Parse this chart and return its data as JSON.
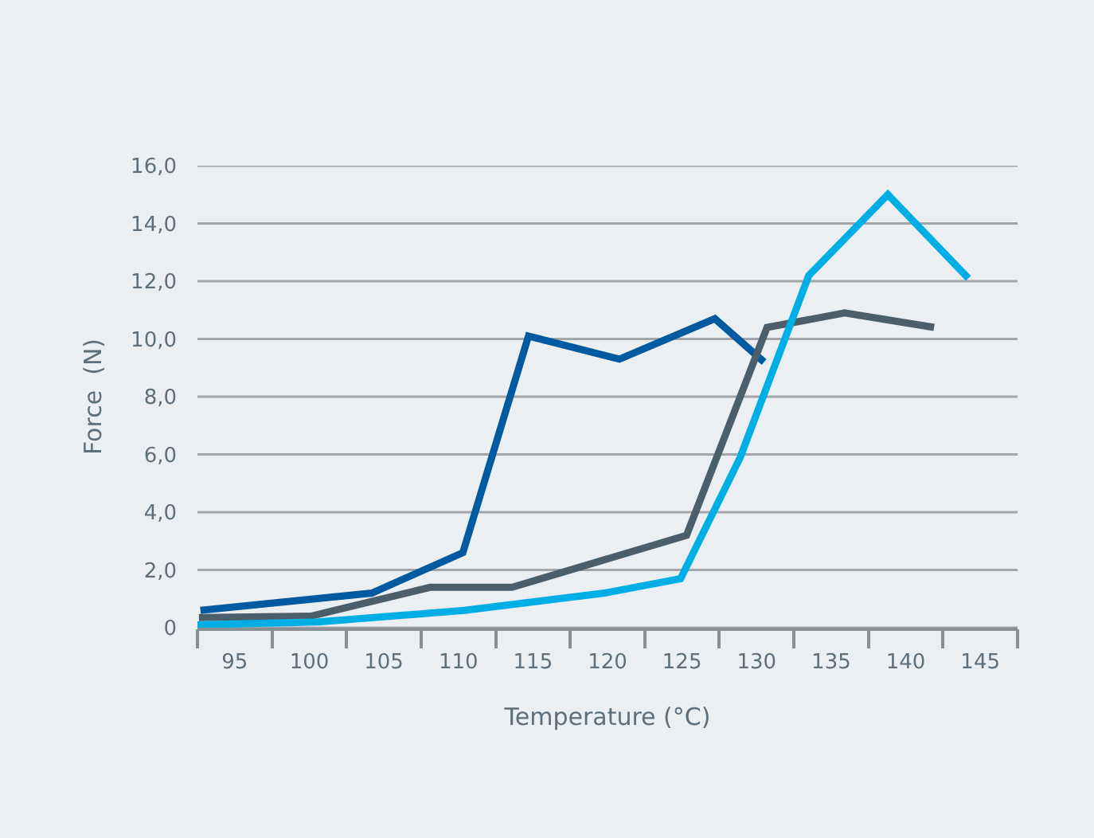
{
  "chart_data": {
    "type": "line",
    "xlabel": "Temperature (°C)",
    "ylabel": "Force  (N)",
    "xlim": [
      92.5,
      147.5
    ],
    "xticks": [
      {
        "value": 92.5,
        "label": null
      },
      95,
      {
        "value": 97.5,
        "label": null
      },
      100,
      {
        "value": 102.5,
        "label": null
      },
      105,
      {
        "value": 107.5,
        "label": null
      },
      110,
      {
        "value": 112.5,
        "label": null
      },
      115,
      {
        "value": 117.5,
        "label": null
      },
      120,
      {
        "value": 122.5,
        "label": null
      },
      125,
      {
        "value": 127.5,
        "label": null
      },
      130,
      {
        "value": 132.5,
        "label": null
      },
      135,
      {
        "value": 137.5,
        "label": null
      },
      140,
      {
        "value": 142.5,
        "label": null
      },
      145,
      {
        "value": 147.5,
        "label": null
      }
    ],
    "ylim": [
      0,
      16
    ],
    "yticks": [
      0,
      {
        "value": 2,
        "label": "2,0"
      },
      {
        "value": 4,
        "label": "4,0"
      },
      {
        "value": 6,
        "label": "6,0"
      },
      {
        "value": 8,
        "label": "8,0"
      },
      {
        "value": 10,
        "label": "10,0"
      },
      {
        "value": 12,
        "label": "12,0"
      },
      {
        "value": 14,
        "label": "14,0"
      },
      {
        "value": 16,
        "label": "16,0"
      }
    ],
    "grid": "y",
    "legend": false,
    "marker": "none",
    "line_style": "solid",
    "series": [
      {
        "color": "#005aa0",
        "x": [
          92.7,
          104.2,
          110.3,
          114.7,
          120.8,
          127.2,
          130.5
        ],
        "values": [
          0.6,
          1.2,
          2.6,
          10.1,
          9.3,
          10.7,
          9.2
        ]
      },
      {
        "color": "#4a5f6b",
        "x": [
          92.6,
          100.1,
          108.1,
          113.6,
          125.3,
          130.7,
          135.9,
          141.9
        ],
        "values": [
          0.35,
          0.4,
          1.4,
          1.4,
          3.2,
          10.4,
          10.9,
          10.4
        ]
      },
      {
        "color": "#00aee6",
        "x": [
          92.5,
          100.6,
          110.4,
          119.8,
          124.9,
          128.9,
          133.5,
          138.8,
          144.2
        ],
        "values": [
          0.1,
          0.2,
          0.6,
          1.2,
          1.7,
          5.9,
          12.2,
          15.0,
          12.1
        ]
      }
    ]
  }
}
